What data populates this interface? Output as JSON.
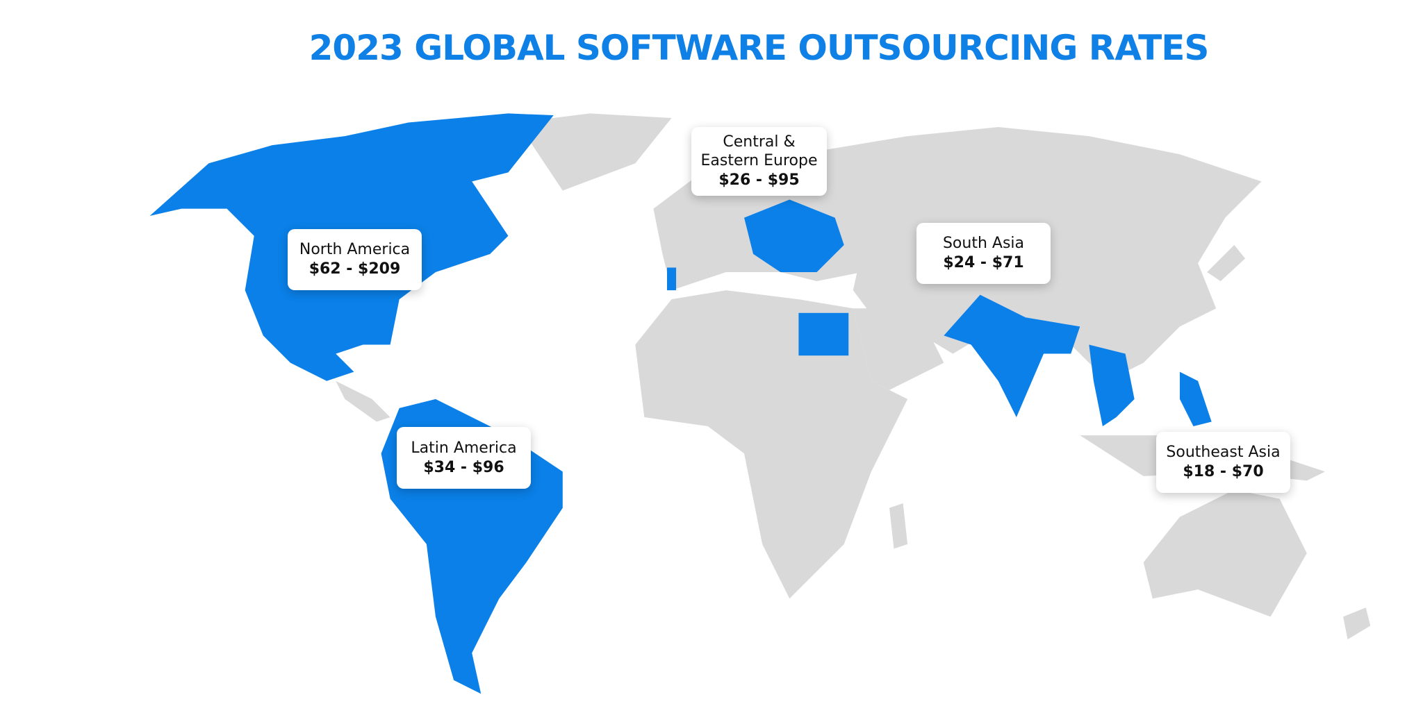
{
  "header": {
    "title": "2023 GLOBAL SOFTWARE OUTSOURCING RATES"
  },
  "regions": [
    {
      "name": "North America",
      "rate": "$62 - $209"
    },
    {
      "name": "Central & Eastern Europe",
      "rate": "$26 - $95"
    },
    {
      "name": "South Asia",
      "rate": "$24 - $71"
    },
    {
      "name": "Latin America",
      "rate": "$34 - $96"
    },
    {
      "name": "Southeast Asia",
      "rate": "$18 - $70"
    }
  ]
}
